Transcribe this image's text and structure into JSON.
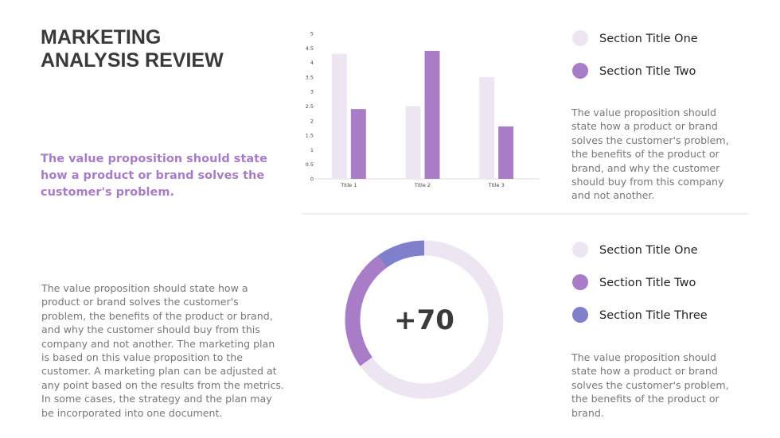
{
  "title": "MARKETING\nANALYSIS REVIEW",
  "highlight": "The value proposition should state how a product or brand solves the customer's problem.",
  "body": "The value proposition should state how a product or brand solves the customer's problem, the benefits of the product or brand, and why the customer should buy from this company and not another. The marketing plan is based on this value proposition to the customer. A marketing plan can be adjusted at any point based on the results from the metrics. In some cases, the strategy and the plan may be incorporated into one document.",
  "notes": [
    "The value proposition should state how a product or brand solves the customer's problem, the benefits of the product or brand, and why the customer should buy from this company and not another.",
    "The value proposition should state how a product or brand solves the customer's problem, the benefits of the product or brand."
  ],
  "chart_data": [
    {
      "type": "bar",
      "categories": [
        "Title 1",
        "Title 2",
        "Title 3"
      ],
      "series": [
        {
          "name": "Section Title One",
          "color": "#ede6f2",
          "values": [
            4.3,
            2.5,
            3.5
          ]
        },
        {
          "name": "Section Title Two",
          "color": "#a87cc7",
          "values": [
            2.4,
            4.4,
            1.8
          ]
        }
      ],
      "ylim": [
        0,
        5
      ],
      "yticks": [
        0,
        0.5,
        1,
        1.5,
        2,
        2.5,
        3,
        3.5,
        4,
        4.5,
        5
      ],
      "grid": false
    },
    {
      "type": "pie",
      "center_label": "+70",
      "categories": [
        "Section Title One",
        "Section Title Two",
        "Section Title Three"
      ],
      "values": [
        65,
        25,
        10
      ],
      "colors": [
        "#ede6f2",
        "#a87cc7",
        "#7f7fcc"
      ]
    }
  ]
}
